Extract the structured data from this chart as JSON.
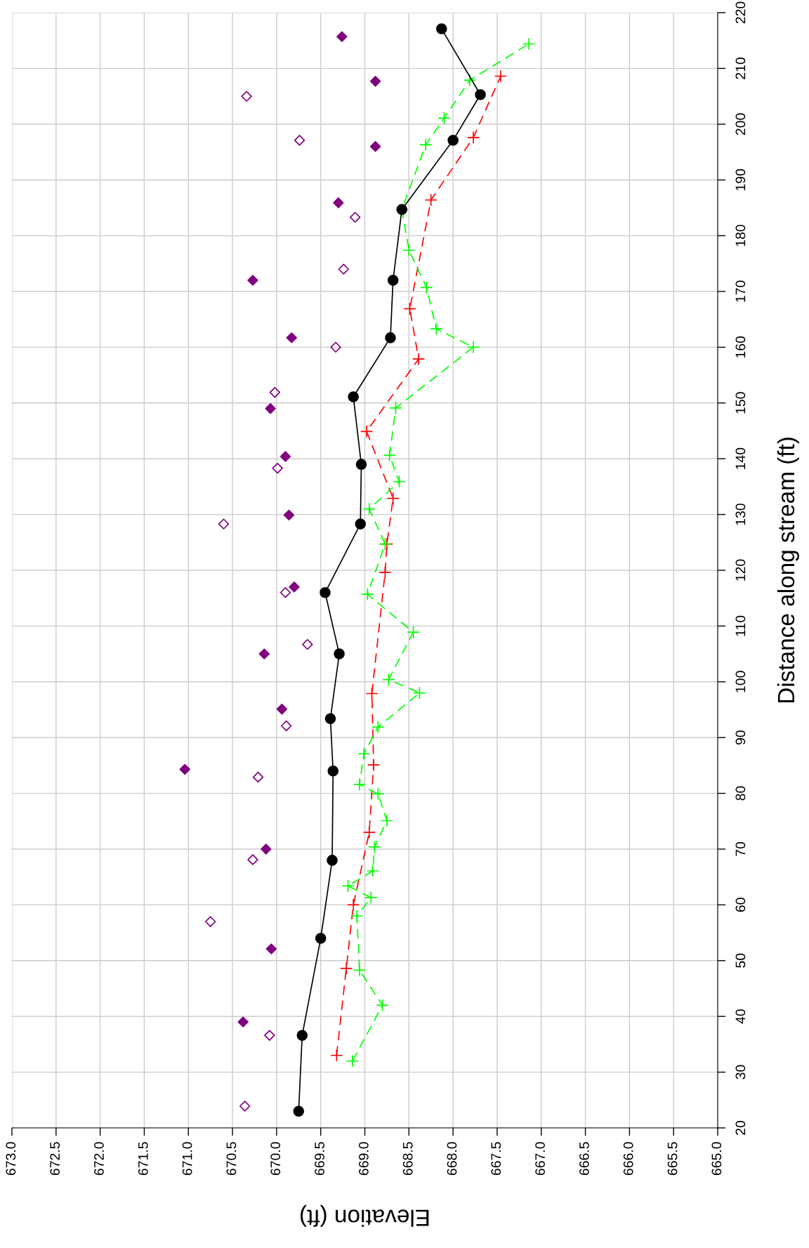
{
  "chart_data": {
    "type": "line",
    "orientation": "horizontal",
    "xlabel": "Elevation (ft)",
    "ylabel": "Distance along stream (ft)",
    "xlim": [
      673,
      665
    ],
    "ylim": [
      20,
      220
    ],
    "xticks": [
      {
        "value": 673,
        "label": "673.0"
      },
      {
        "value": 672.5,
        "label": "672.5"
      },
      {
        "value": 672,
        "label": "672.0"
      },
      {
        "value": 671.5,
        "label": "671.5"
      },
      {
        "value": 671,
        "label": "671.0"
      },
      {
        "value": 670.5,
        "label": "670.5"
      },
      {
        "value": 670,
        "label": "670.0"
      },
      {
        "value": 669.5,
        "label": "669.5"
      },
      {
        "value": 669,
        "label": "669.0"
      },
      {
        "value": 668.5,
        "label": "668.5"
      },
      {
        "value": 668,
        "label": "668.0"
      },
      {
        "value": 667.5,
        "label": "667.5"
      },
      {
        "value": 667,
        "label": "667.0"
      },
      {
        "value": 666.5,
        "label": "666.5"
      },
      {
        "value": 666,
        "label": "666.0"
      },
      {
        "value": 665.5,
        "label": "665.5"
      },
      {
        "value": 665,
        "label": "665.0"
      }
    ],
    "yticks": [
      20,
      30,
      40,
      50,
      60,
      70,
      80,
      90,
      100,
      110,
      120,
      130,
      140,
      150,
      160,
      170,
      180,
      190,
      200,
      210,
      220
    ],
    "grid": true,
    "series": [
      {
        "color": "#ff0000",
        "marker": "cross",
        "line_style": "dashed",
        "x": [
          33,
          48.6,
          60,
          73,
          85.1,
          97.9,
          119.6,
          124.7,
          132.9,
          144.9,
          157.9,
          166.9,
          186.4,
          197.6,
          208.6
        ],
        "values": [
          669.32,
          669.21,
          669.13,
          668.95,
          668.9,
          668.92,
          668.77,
          668.75,
          668.68,
          668.98,
          668.39,
          668.49,
          668.25,
          667.77,
          667.46
        ]
      },
      {
        "color": "#00ff00",
        "marker": "cross",
        "line_style": "dashed",
        "x": [
          32,
          42,
          48.3,
          58,
          61.3,
          63.4,
          66.1,
          70.4,
          75.1,
          79.9,
          81.6,
          87.1,
          91.9,
          98,
          100.4,
          108.9,
          115.7,
          124.7,
          131,
          135.9,
          140.6,
          149.1,
          160,
          163.3,
          170.7,
          177.4,
          184.7,
          196.3,
          201.1,
          207.9,
          214.4
        ],
        "values": [
          669.14,
          668.8,
          669.06,
          669.09,
          668.93,
          669.19,
          668.91,
          668.89,
          668.75,
          668.85,
          669.06,
          669.01,
          668.85,
          668.38,
          668.73,
          668.45,
          668.97,
          668.77,
          668.95,
          668.61,
          668.72,
          668.65,
          667.77,
          668.19,
          668.3,
          668.5,
          668.58,
          668.31,
          668.1,
          667.81,
          667.14
        ]
      },
      {
        "color": "#000000",
        "marker": "circle",
        "line_style": "solid",
        "x": [
          23,
          36.6,
          54,
          68,
          84,
          93.4,
          105,
          116,
          128.3,
          139,
          151.1,
          161.7,
          172,
          184.7,
          197.1,
          205.3,
          217.1
        ],
        "values": [
          669.75,
          669.71,
          669.5,
          669.37,
          669.36,
          669.39,
          669.29,
          669.45,
          669.05,
          669.04,
          669.13,
          668.71,
          668.68,
          668.58,
          668.0,
          667.69,
          668.13
        ]
      },
      {
        "type": "scatter",
        "color": "#800080",
        "marker": "diamond",
        "x": [
          39,
          52.1,
          70,
          84.3,
          95.1,
          105,
          117,
          129.9,
          140.4,
          149,
          161.7,
          172,
          185.9,
          196,
          207.7,
          215.7
        ],
        "values": [
          670.38,
          670.06,
          670.12,
          671.04,
          669.94,
          670.14,
          669.8,
          669.86,
          669.9,
          670.07,
          669.83,
          670.27,
          669.3,
          668.88,
          668.88,
          669.26
        ]
      },
      {
        "type": "scatter",
        "color": "#800080",
        "marker": "diamond_open",
        "x": [
          23.9,
          36.6,
          57,
          68.1,
          82.9,
          92.1,
          106.7,
          116,
          128.3,
          138.3,
          151.9,
          160,
          174,
          183.3,
          197.1,
          205
        ],
        "values": [
          670.36,
          670.08,
          670.75,
          670.27,
          670.21,
          669.89,
          669.65,
          669.9,
          670.6,
          669.99,
          670.02,
          669.33,
          669.24,
          669.11,
          669.74,
          670.34
        ]
      }
    ]
  }
}
